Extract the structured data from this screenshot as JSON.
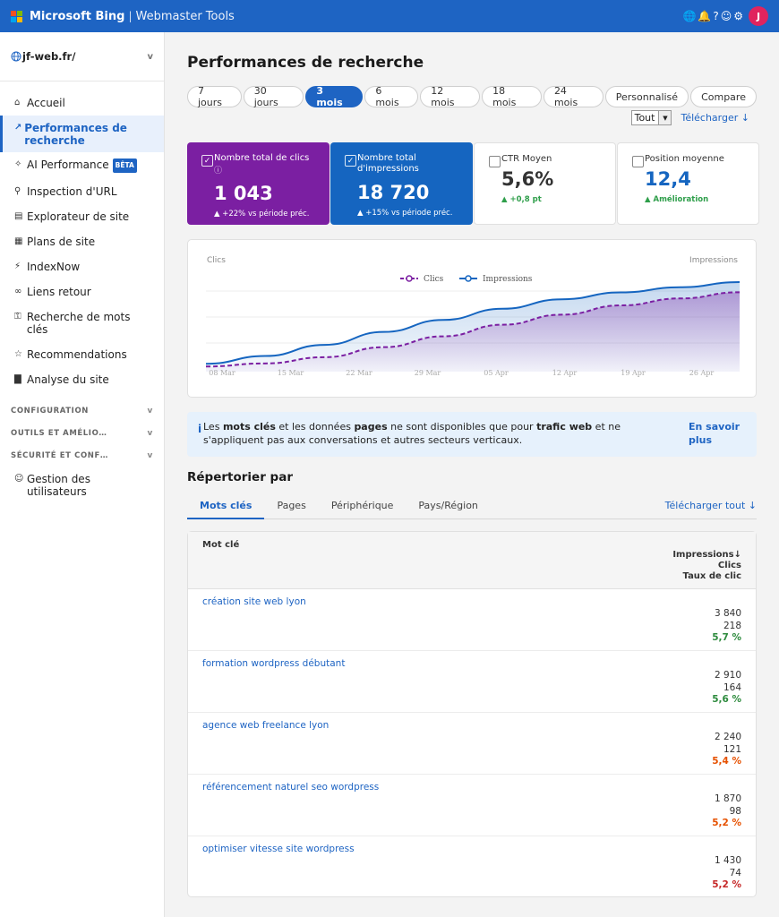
{
  "header": {
    "brand": "Microsoft Bing",
    "separator": "|",
    "subtitle": "Webmaster Tools",
    "icons": [
      "earth-icon",
      "bell-icon",
      "help-icon",
      "smiley-icon",
      "gear-icon"
    ],
    "icon_glyphs": [
      "🌐",
      "🔔",
      "?",
      "☺",
      "⚙"
    ],
    "avatar_initial": "J",
    "logo_colors": [
      "#f25022",
      "#7fba00",
      "#00a4ef",
      "#ffb900"
    ]
  },
  "sidebar": {
    "site": "jf-web.fr/",
    "items": [
      {
        "icon": "home-icon",
        "glyph": "⌂",
        "label": "Accueil"
      },
      {
        "icon": "chart-icon",
        "glyph": "↗",
        "label": "Performances de recherche",
        "active": true
      },
      {
        "icon": "sparkle-icon",
        "glyph": "✧",
        "label": "AI Performance",
        "badge": "BÊTA"
      },
      {
        "icon": "magnifier-icon",
        "glyph": "⚲",
        "label": "Inspection d'URL"
      },
      {
        "icon": "folder-icon",
        "glyph": "▤",
        "label": "Explorateur de site"
      },
      {
        "icon": "map-icon",
        "glyph": "▦",
        "label": "Plans de site"
      },
      {
        "icon": "bolt-icon",
        "glyph": "⚡",
        "label": "IndexNow"
      },
      {
        "icon": "link-icon",
        "glyph": "∞",
        "label": "Liens retour"
      },
      {
        "icon": "key-icon",
        "glyph": "⚿",
        "label": "Recherche de mots clés"
      },
      {
        "icon": "star-icon",
        "glyph": "☆",
        "label": "Recommendations"
      },
      {
        "icon": "bar-chart-icon",
        "glyph": "▇",
        "label": "Analyse du site"
      }
    ],
    "sections": [
      "CONFIGURATION",
      "OUTILS ET AMÉLIO…",
      "SÉCURITÉ ET CONF…"
    ],
    "bottom_item": {
      "icon": "users-icon",
      "glyph": "☺",
      "label": "Gestion des utilisateurs"
    }
  },
  "main": {
    "title": "Performances de recherche",
    "ranges": [
      "7 jours",
      "30 jours",
      "3 mois",
      "6 mois",
      "12 mois",
      "18 mois",
      "24 mois",
      "Personnalisé",
      "Compare"
    ],
    "active_range": "3 mois",
    "filter_value": "Tout",
    "download_label": "Télécharger ↓",
    "cards": [
      {
        "label": "Nombre total de clics",
        "value": "1 043",
        "delta": "▲ +22% vs période préc.",
        "checked": true,
        "info": "ⓘ"
      },
      {
        "label": "Nombre total d'impressions",
        "value": "18 720",
        "delta": "▲ +15% vs période préc.",
        "checked": true
      },
      {
        "label": "CTR Moyen",
        "value": "5,6%",
        "delta": "▲ +0,8 pt",
        "checked": false
      },
      {
        "label": "Position moyenne",
        "value": "12,4",
        "delta": "▲ Amélioration",
        "checked": false
      }
    ],
    "notice": {
      "icon": "info-icon",
      "before": "Les ",
      "b1": "mots clés",
      "mid1": " et les données ",
      "b2": "pages",
      "mid2": " ne sont disponibles que pour ",
      "b3": "trafic web",
      "after": " et ne s'appliquent pas aux conversations et autres secteurs verticaux.",
      "more": "En savoir plus"
    },
    "repertoire_title": "Répertorier par",
    "tabs": [
      "Mots clés",
      "Pages",
      "Périphérique",
      "Pays/Région"
    ],
    "active_tab": "Mots clés",
    "download_all": "Télécharger tout ↓",
    "table": {
      "col_keyword": "Mot clé",
      "col_impressions": "Impressions↓",
      "col_clicks": "Clics",
      "col_ctr": "Taux de clic",
      "rows": [
        {
          "keyword": "création site web lyon",
          "impressions": "3 840",
          "clicks": "218",
          "ctr": "5,7 %",
          "ctr_color": "#2e8b3e"
        },
        {
          "keyword": "formation wordpress débutant",
          "impressions": "2 910",
          "clicks": "164",
          "ctr": "5,6 %",
          "ctr_color": "#2e8b3e"
        },
        {
          "keyword": "agence web freelance lyon",
          "impressions": "2 240",
          "clicks": "121",
          "ctr": "5,4 %",
          "ctr_color": "#e65100"
        },
        {
          "keyword": "référencement naturel seo wordpress",
          "impressions": "1 870",
          "clicks": "98",
          "ctr": "5,2 %",
          "ctr_color": "#e65100"
        },
        {
          "keyword": "optimiser vitesse site wordpress",
          "impressions": "1 430",
          "clicks": "74",
          "ctr": "5,2 %",
          "ctr_color": "#c62828"
        }
      ]
    }
  },
  "chart_data": {
    "type": "area",
    "ylabel_left": "Clics",
    "ylabel_right": "Impressions",
    "x_ticks": [
      "08 Mar",
      "15 Mar",
      "22 Mar",
      "29 Mar",
      "05 Apr",
      "12 Apr",
      "19 Apr",
      "26 Apr"
    ],
    "series": [
      {
        "name": "Clics",
        "color": "#7b1fa2",
        "dashed": true,
        "values": [
          0.02,
          0.06,
          0.14,
          0.27,
          0.41,
          0.56,
          0.69,
          0.81,
          0.9,
          0.98
        ]
      },
      {
        "name": "Impressions",
        "color": "#1565c0",
        "dashed": false,
        "values": [
          0.05,
          0.14,
          0.27,
          0.42,
          0.56,
          0.69,
          0.8,
          0.88,
          0.94,
          1.0
        ]
      }
    ],
    "colors": {
      "accent": "#1e64c3"
    }
  }
}
